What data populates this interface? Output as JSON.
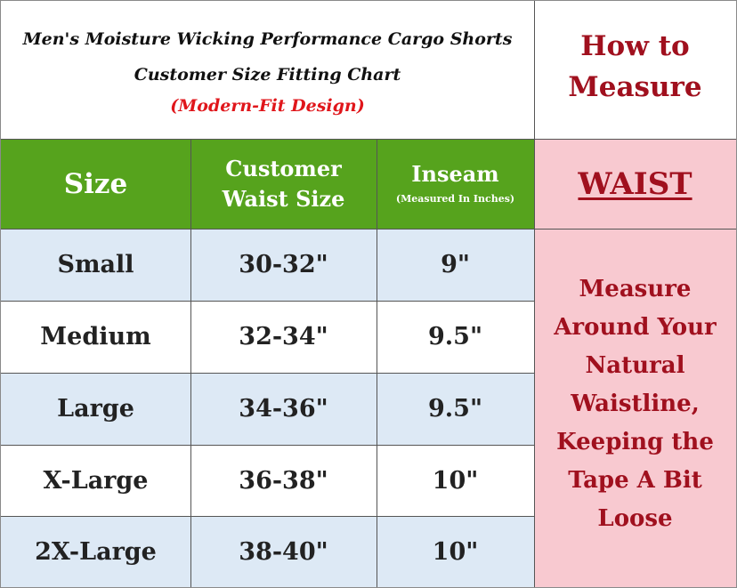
{
  "title": {
    "line1": "Men's Moisture Wicking Performance Cargo Shorts",
    "line2": "Customer Size Fitting Chart",
    "line3": "(Modern-Fit Design)"
  },
  "how_to": {
    "line1": "How to",
    "line2": "Measure"
  },
  "headers": {
    "size": "Size",
    "waist_line1": "Customer",
    "waist_line2": "Waist Size",
    "inseam": "Inseam",
    "inseam_sub": "(Measured In Inches)",
    "waist_label": "WAIST"
  },
  "rows": [
    {
      "size": "Small",
      "waist": "30-32\"",
      "inseam": "9\""
    },
    {
      "size": "Medium",
      "waist": "32-34\"",
      "inseam": "9.5\""
    },
    {
      "size": "Large",
      "waist": "34-36\"",
      "inseam": "9.5\""
    },
    {
      "size": "X-Large",
      "waist": "36-38\"",
      "inseam": "10\""
    },
    {
      "size": "2X-Large",
      "waist": "38-40\"",
      "inseam": "10\""
    }
  ],
  "instructions": [
    "Measure",
    "Around Your",
    "Natural",
    "Waistline,",
    "Keeping the",
    "Tape A Bit",
    "Loose"
  ],
  "colors": {
    "header_green": "#56a31d",
    "pink_panel": "#f8c9d0",
    "dark_red_text": "#a0101e",
    "bright_red_text": "#e0161b",
    "row_blue": "#dde9f5"
  }
}
